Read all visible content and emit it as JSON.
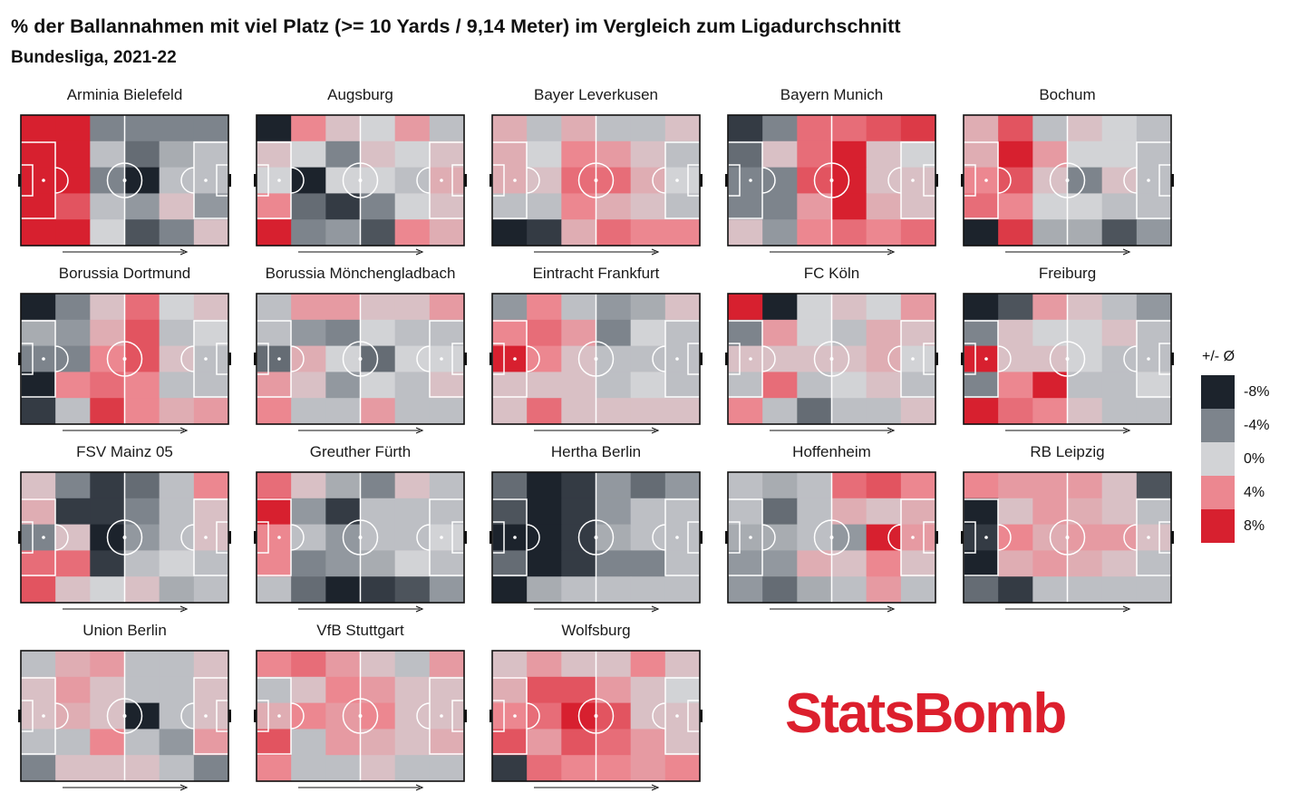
{
  "title": "% der Ballannahmen mit viel Platz (>= 10 Yards / 9,14 Meter) im Vergleich zum Ligadurchschnitt",
  "subtitle": "Bundesliga, 2021-22",
  "logo": "StatsBomb",
  "colors": {
    "pitch_line": "#ffffff",
    "border": "#111111",
    "arrow": "#111111",
    "scale": [
      {
        "value": -8,
        "color": "#1c232c"
      },
      {
        "value": -4,
        "color": "#7d848c"
      },
      {
        "value": 0,
        "color": "#d2d3d6"
      },
      {
        "value": 4,
        "color": "#ec8790"
      },
      {
        "value": 8,
        "color": "#d7202f"
      }
    ]
  },
  "chart_data": {
    "type": "heatmap",
    "title": "% der Ballannahmen mit viel Platz (>= 10 Yards / 9,14 Meter) im Vergleich zum Ligadurchschnitt",
    "subtitle": "Bundesliga, 2021-22",
    "value_range": [
      -8,
      8
    ],
    "grid": "6 columns (own goal to opponent goal, left to right) x 5 rows",
    "attack_direction": "left-to-right",
    "legend": {
      "title": "+/- Ø",
      "placement": "right",
      "entries": [
        {
          "label": "-8%",
          "value": -8
        },
        {
          "label": "-4%",
          "value": -4
        },
        {
          "label": "0%",
          "value": 0
        },
        {
          "label": "4%",
          "value": 4
        },
        {
          "label": "8%",
          "value": 8
        }
      ]
    },
    "teams": [
      {
        "name": "Arminia Bielefeld",
        "grid": [
          [
            8,
            8,
            -4,
            -4,
            -4,
            -4
          ],
          [
            8,
            8,
            -1,
            -5,
            -2,
            -1
          ],
          [
            8,
            8,
            -4,
            -8,
            -1,
            -1
          ],
          [
            8,
            6,
            -1,
            -3,
            1,
            -3
          ],
          [
            8,
            8,
            0,
            -6,
            -4,
            1
          ]
        ]
      },
      {
        "name": "Augsburg",
        "grid": [
          [
            -8,
            4,
            1,
            0,
            3,
            -1
          ],
          [
            1,
            0,
            -4,
            1,
            0,
            1
          ],
          [
            0,
            -8,
            0,
            0,
            -1,
            2
          ],
          [
            4,
            -5,
            -7,
            -4,
            0,
            1
          ],
          [
            8,
            -4,
            -3,
            -6,
            4,
            2
          ]
        ]
      },
      {
        "name": "Bayer Leverkusen",
        "grid": [
          [
            2,
            -1,
            2,
            -1,
            -1,
            1
          ],
          [
            2,
            0,
            4,
            3,
            1,
            -1
          ],
          [
            2,
            1,
            5,
            5,
            2,
            0
          ],
          [
            -1,
            -1,
            4,
            2,
            1,
            -1
          ],
          [
            -8,
            -7,
            2,
            5,
            4,
            4
          ]
        ]
      },
      {
        "name": "Bayern Munich",
        "grid": [
          [
            -7,
            -4,
            5,
            5,
            6,
            7
          ],
          [
            -5,
            1,
            5,
            8,
            1,
            0
          ],
          [
            -4,
            -4,
            6,
            8,
            1,
            1
          ],
          [
            -4,
            -4,
            3,
            8,
            2,
            1
          ],
          [
            1,
            -3,
            4,
            5,
            4,
            5
          ]
        ]
      },
      {
        "name": "Bochum",
        "grid": [
          [
            2,
            6,
            -1,
            1,
            0,
            -1
          ],
          [
            2,
            8,
            3,
            0,
            0,
            -1
          ],
          [
            4,
            6,
            1,
            -4,
            1,
            -1
          ],
          [
            5,
            4,
            0,
            0,
            -1,
            -1
          ],
          [
            -8,
            7,
            -2,
            -2,
            -6,
            -3
          ]
        ]
      },
      {
        "name": "Borussia Dortmund",
        "grid": [
          [
            -8,
            -4,
            1,
            5,
            0,
            1
          ],
          [
            -2,
            -3,
            2,
            6,
            -1,
            0
          ],
          [
            -4,
            -4,
            4,
            6,
            1,
            -1
          ],
          [
            -8,
            4,
            5,
            4,
            -1,
            -1
          ],
          [
            -7,
            -1,
            7,
            4,
            2,
            3
          ]
        ]
      },
      {
        "name": "Borussia Mönchengladbach",
        "grid": [
          [
            -1,
            3,
            3,
            1,
            1,
            3
          ],
          [
            -1,
            -3,
            -4,
            0,
            -1,
            -1
          ],
          [
            -5,
            2,
            0,
            -5,
            0,
            0
          ],
          [
            3,
            1,
            -3,
            0,
            -1,
            1
          ],
          [
            4,
            -1,
            -1,
            3,
            -1,
            -1
          ]
        ]
      },
      {
        "name": "Eintracht Frankfurt",
        "grid": [
          [
            -3,
            4,
            -1,
            -3,
            -2,
            1
          ],
          [
            4,
            5,
            3,
            -4,
            0,
            -1
          ],
          [
            8,
            4,
            1,
            -1,
            -1,
            -1
          ],
          [
            1,
            1,
            1,
            -1,
            0,
            -1
          ],
          [
            1,
            5,
            1,
            1,
            1,
            1
          ]
        ]
      },
      {
        "name": "FC Köln",
        "grid": [
          [
            8,
            -8,
            0,
            1,
            0,
            3
          ],
          [
            -4,
            3,
            0,
            -1,
            2,
            1
          ],
          [
            1,
            1,
            1,
            1,
            2,
            0
          ],
          [
            -1,
            5,
            -1,
            0,
            1,
            -1
          ],
          [
            4,
            -1,
            -5,
            -1,
            -1,
            1
          ]
        ]
      },
      {
        "name": "Freiburg",
        "grid": [
          [
            -8,
            -6,
            3,
            1,
            -1,
            -3
          ],
          [
            -4,
            1,
            0,
            0,
            1,
            -1
          ],
          [
            8,
            1,
            1,
            0,
            -1,
            -1
          ],
          [
            -4,
            4,
            8,
            -1,
            -1,
            0
          ],
          [
            8,
            5,
            4,
            1,
            -1,
            -1
          ]
        ]
      },
      {
        "name": "FSV Mainz 05",
        "grid": [
          [
            1,
            -4,
            -7,
            -5,
            -1,
            4
          ],
          [
            2,
            -7,
            -7,
            -4,
            -1,
            1
          ],
          [
            -4,
            1,
            -8,
            -3,
            -1,
            1
          ],
          [
            5,
            5,
            -7,
            -1,
            0,
            -1
          ],
          [
            6,
            1,
            0,
            1,
            -2,
            -1
          ]
        ]
      },
      {
        "name": "Greuther Fürth",
        "grid": [
          [
            5,
            1,
            -2,
            -4,
            1,
            -1
          ],
          [
            8,
            -3,
            -7,
            -1,
            -1,
            -1
          ],
          [
            4,
            -1,
            -3,
            -1,
            -1,
            0
          ],
          [
            4,
            -4,
            -3,
            -2,
            0,
            -1
          ],
          [
            -1,
            -5,
            -8,
            -7,
            -6,
            -3
          ]
        ]
      },
      {
        "name": "Hertha Berlin",
        "grid": [
          [
            -5,
            -8,
            -7,
            -3,
            -5,
            -3
          ],
          [
            -6,
            -8,
            -7,
            -3,
            -1,
            -1
          ],
          [
            -8,
            -8,
            -7,
            -2,
            -1,
            -1
          ],
          [
            -5,
            -8,
            -7,
            -4,
            -4,
            -1
          ],
          [
            -8,
            -2,
            -1,
            -1,
            -1,
            -1
          ]
        ]
      },
      {
        "name": "Hoffenheim",
        "grid": [
          [
            -1,
            -2,
            -1,
            5,
            6,
            4
          ],
          [
            -1,
            -5,
            -1,
            2,
            1,
            2
          ],
          [
            -2,
            -2,
            -1,
            -3,
            8,
            3
          ],
          [
            -3,
            -3,
            2,
            1,
            4,
            1
          ],
          [
            -3,
            -5,
            -2,
            -1,
            3,
            -1
          ]
        ]
      },
      {
        "name": "RB Leipzig",
        "grid": [
          [
            4,
            3,
            3,
            3,
            1,
            -6
          ],
          [
            -8,
            1,
            3,
            2,
            1,
            -1
          ],
          [
            -7,
            4,
            2,
            3,
            3,
            1
          ],
          [
            -8,
            2,
            3,
            2,
            1,
            -1
          ],
          [
            -5,
            -7,
            -1,
            -1,
            -1,
            -1
          ]
        ]
      },
      {
        "name": "Union Berlin",
        "grid": [
          [
            -1,
            2,
            3,
            -1,
            -1,
            1
          ],
          [
            1,
            3,
            1,
            -1,
            -1,
            1
          ],
          [
            1,
            2,
            1,
            -8,
            -1,
            1
          ],
          [
            -1,
            -1,
            4,
            -1,
            -3,
            3
          ],
          [
            -4,
            1,
            1,
            1,
            -1,
            -4
          ]
        ]
      },
      {
        "name": "VfB Stuttgart",
        "grid": [
          [
            4,
            5,
            3,
            1,
            -1,
            3
          ],
          [
            -1,
            1,
            4,
            3,
            1,
            1
          ],
          [
            2,
            4,
            3,
            4,
            1,
            1
          ],
          [
            6,
            -1,
            3,
            2,
            1,
            2
          ],
          [
            4,
            -1,
            -1,
            1,
            -1,
            -1
          ]
        ]
      },
      {
        "name": "Wolfsburg",
        "grid": [
          [
            1,
            3,
            1,
            1,
            4,
            1
          ],
          [
            2,
            6,
            6,
            3,
            1,
            0
          ],
          [
            4,
            5,
            8,
            6,
            1,
            1
          ],
          [
            6,
            3,
            6,
            5,
            3,
            1
          ],
          [
            -7,
            5,
            4,
            4,
            3,
            4
          ]
        ]
      }
    ]
  }
}
